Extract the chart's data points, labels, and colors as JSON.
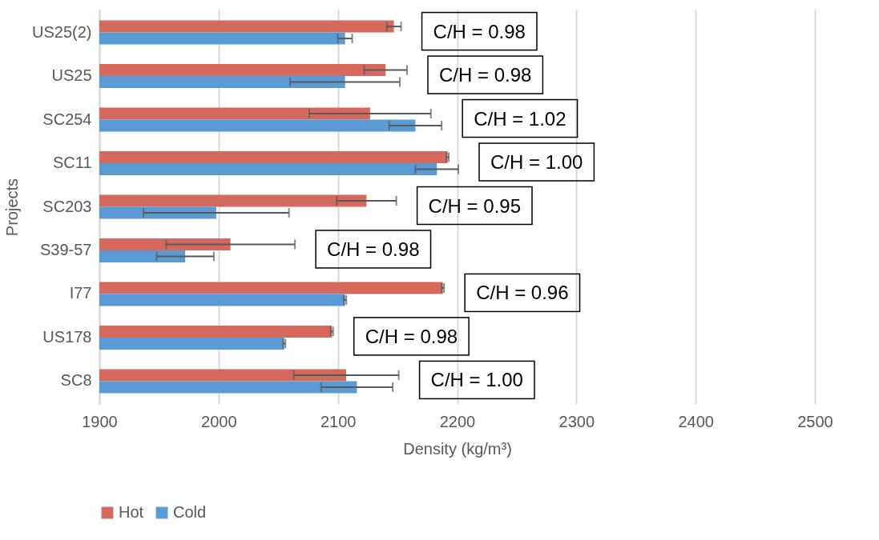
{
  "chart_data": {
    "type": "bar",
    "orientation": "horizontal",
    "xlabel": "Density (kg/m³)",
    "ylabel": "Projects",
    "categories": [
      "US25(2)",
      "US25",
      "SC254",
      "SC11",
      "SC203",
      "S39-57",
      "I77",
      "US178",
      "SC8"
    ],
    "series": [
      {
        "name": "Hot",
        "color": "#d5695d",
        "values": [
          2147,
          2140,
          2127,
          2192,
          2124,
          2010,
          2188,
          2095,
          2107
        ],
        "errors": [
          6,
          18,
          51,
          1,
          25,
          54,
          1,
          1,
          44
        ]
      },
      {
        "name": "Cold",
        "color": "#5b9bd5",
        "values": [
          2106,
          2106,
          2165,
          2183,
          1998,
          1972,
          2106,
          2055,
          2116
        ],
        "errors": [
          6,
          46,
          22,
          18,
          61,
          24,
          1,
          1,
          30
        ]
      }
    ],
    "xlim": [
      1900,
      2500
    ],
    "xticks": [
      1900,
      2000,
      2100,
      2200,
      2300,
      2400,
      2500
    ],
    "grid": "x",
    "legend": "bottom",
    "annotations": [
      "C/H = 0.98",
      "C/H = 0.98",
      "C/H = 1.02",
      "C/H = 1.00",
      "C/H = 0.95",
      "C/H = 0.98",
      "C/H = 0.96",
      "C/H = 0.98",
      "C/H = 1.00"
    ]
  }
}
